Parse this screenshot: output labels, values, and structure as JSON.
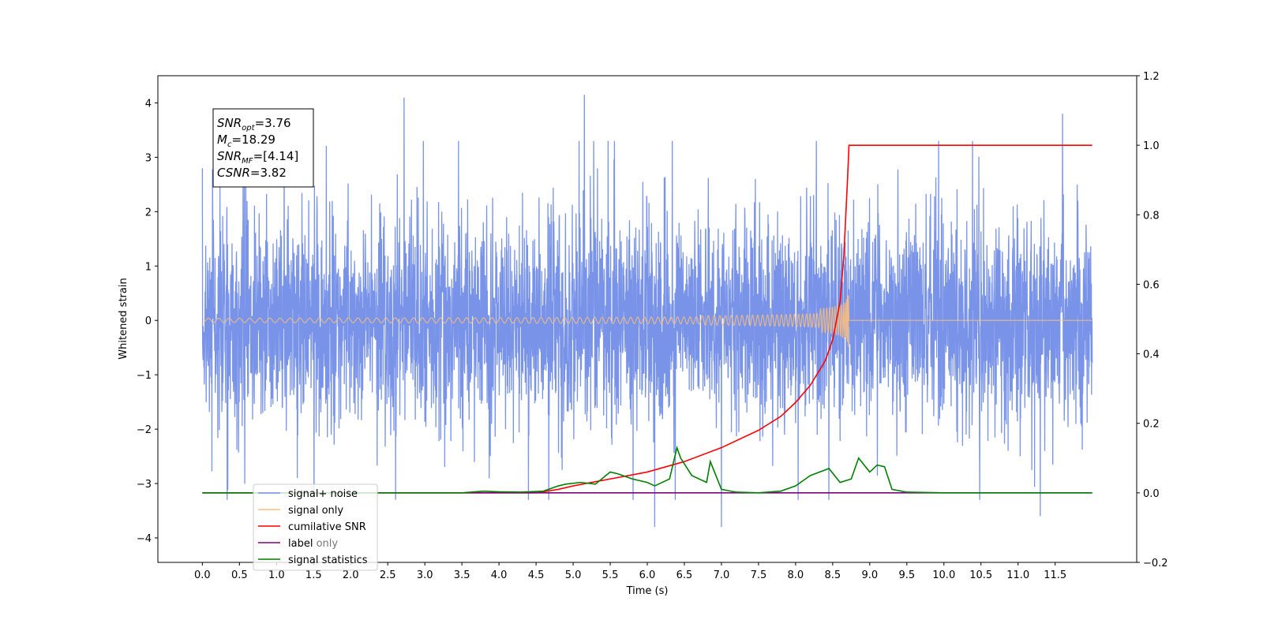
{
  "chart_data": {
    "type": "line",
    "xlabel": "Time (s)",
    "ylabel": "Whitened strain",
    "xlim": [
      -0.6,
      12.6
    ],
    "ylim": [
      -4.45,
      4.5
    ],
    "y2lim": [
      -0.2,
      1.2
    ],
    "x_ticks": [
      "0.0",
      "0.5",
      "1.0",
      "1.5",
      "2.0",
      "2.5",
      "3.0",
      "3.5",
      "4.0",
      "4.5",
      "5.0",
      "5.5",
      "6.0",
      "6.5",
      "7.0",
      "7.5",
      "8.0",
      "8.5",
      "9.0",
      "9.5",
      "10.0",
      "10.5",
      "11.0",
      "11.5"
    ],
    "y_ticks": [
      "4",
      "3",
      "2",
      "1",
      "0",
      "−1",
      "−2",
      "−3",
      "−4"
    ],
    "y2_ticks": [
      "1.2",
      "1.0",
      "0.8",
      "0.6",
      "0.4",
      "0.2",
      "0.0",
      "−0.2"
    ],
    "grid": false,
    "legend_position": "lower-left",
    "annotation": {
      "snr_opt": "=3.76",
      "mc": "=18.29",
      "snr_mf": "=[4.14]",
      "csnr": "=3.82"
    },
    "series": [
      {
        "name": "signal+ noise",
        "color": "#7893e8",
        "axis": "left",
        "x_range": [
          0.0,
          12.0
        ],
        "amplitude_typical": 1.5,
        "peaks": [
          [
            2.72,
            4.1
          ],
          [
            5.15,
            4.15
          ],
          [
            11.6,
            3.8
          ],
          [
            0.0,
            2.8
          ],
          [
            6.1,
            -3.8
          ],
          [
            7.0,
            -3.8
          ],
          [
            11.3,
            -3.6
          ]
        ]
      },
      {
        "name": "signal only",
        "color": "#ffc07a",
        "axis": "left",
        "x_range": [
          0.0,
          12.0
        ],
        "merger_time": 8.72,
        "peak_amplitude": 0.85
      },
      {
        "name": "cumilative SNR",
        "color": "#ff0000",
        "axis": "right",
        "x": [
          0.0,
          4.5,
          4.8,
          5.0,
          5.5,
          6.0,
          6.5,
          7.0,
          7.5,
          7.8,
          8.0,
          8.2,
          8.4,
          8.5,
          8.6,
          8.65,
          8.7,
          8.72,
          12.0
        ],
        "y": [
          0.0,
          0.0,
          0.01,
          0.02,
          0.04,
          0.06,
          0.09,
          0.13,
          0.18,
          0.22,
          0.26,
          0.31,
          0.38,
          0.44,
          0.55,
          0.68,
          0.9,
          1.0,
          1.0
        ]
      },
      {
        "name": "label",
        "color": "#800080",
        "axis": "right",
        "x": [
          0.0,
          12.0
        ],
        "y": [
          0.0,
          0.0
        ]
      },
      {
        "name": "label only",
        "color": "#800080",
        "axis": "right",
        "x": [],
        "y": []
      },
      {
        "name": "signal statistics",
        "color": "#008000",
        "axis": "right",
        "x": [
          0.0,
          3.5,
          3.8,
          4.0,
          4.3,
          4.6,
          4.8,
          4.9,
          5.1,
          5.3,
          5.5,
          5.6,
          5.8,
          6.0,
          6.1,
          6.3,
          6.4,
          6.45,
          6.6,
          6.8,
          6.85,
          7.0,
          7.2,
          7.5,
          7.8,
          8.0,
          8.2,
          8.45,
          8.6,
          8.75,
          8.85,
          9.0,
          9.1,
          9.2,
          9.3,
          9.5,
          10.0,
          12.0
        ],
        "y": [
          0.0,
          0.0,
          0.005,
          0.003,
          0.002,
          0.005,
          0.02,
          0.025,
          0.03,
          0.025,
          0.06,
          0.055,
          0.04,
          0.03,
          0.02,
          0.04,
          0.13,
          0.1,
          0.05,
          0.03,
          0.09,
          0.01,
          0.002,
          0.0,
          0.005,
          0.02,
          0.05,
          0.07,
          0.03,
          0.04,
          0.1,
          0.06,
          0.08,
          0.075,
          0.01,
          0.002,
          0.0,
          0.0
        ]
      }
    ]
  }
}
